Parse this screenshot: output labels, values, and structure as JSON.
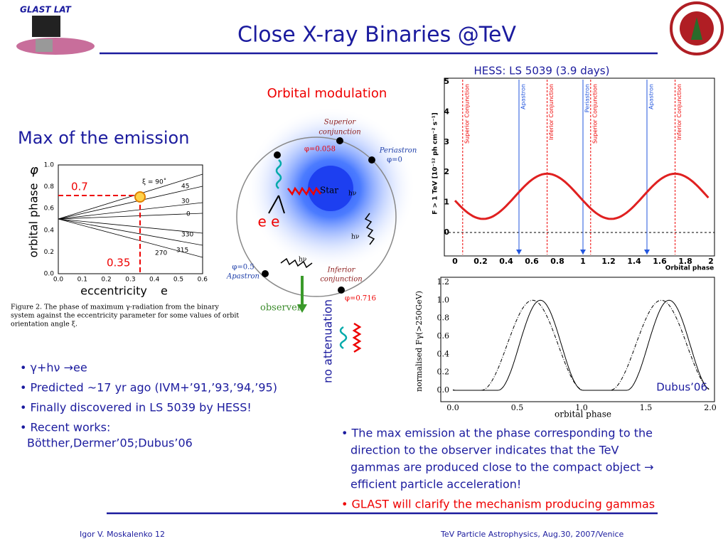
{
  "header": {
    "logo": "GLAST LAT",
    "title": "Close X-ray Binaries @TeV"
  },
  "left_figure": {
    "heading": "Max of the emission",
    "y_label": "orbital phase",
    "y_symbol": "φ",
    "x_label": "eccentricity",
    "x_symbol": "e",
    "yticks": [
      "1.0",
      "0.8",
      "0.6",
      "0.4",
      "0.2",
      "0.0"
    ],
    "xticks": [
      "0.0",
      "0.1",
      "0.2",
      "0.3",
      "0.4",
      "0.5",
      "0.6"
    ],
    "curve_labels": [
      "ξ = 90˚",
      "45",
      "30",
      "0",
      "330",
      "315",
      "270"
    ],
    "markers": [
      "0.7",
      "0.35"
    ],
    "caption_lines": [
      "Figure 2.  The phase of maximum γ-radiation from the binary",
      "system against the eccentricity parameter for some values of orbit",
      "orientation angle ξ."
    ]
  },
  "diagram": {
    "heading": "Orbital modulation",
    "labels": [
      "Superior",
      "conjunction",
      "φ=0.058",
      "Periastron",
      "φ=0",
      "Star",
      "hν",
      "hν",
      "hν",
      "φ=0.5",
      "Apastron",
      "Inferior",
      "conjunction",
      "φ=0.716",
      "observer",
      "e e",
      "no attenuation"
    ]
  },
  "hess": {
    "title": "HESS: LS 5039 (3.9 days)",
    "y_label": "F > 1 TeV [10⁻¹² ph cm⁻² s⁻¹]",
    "yticks": [
      "5",
      "4",
      "3",
      "2",
      "1",
      "0"
    ],
    "xticks": [
      "0",
      "0.2",
      "0.4",
      "0.6",
      "0.8",
      "1",
      "1.2",
      "1.4",
      "1.6",
      "1.8",
      "2"
    ],
    "x_label": "Orbital phase",
    "annotations": [
      "Superior Conjunction",
      "Apastron",
      "Inferior Conjunction",
      "Periastron",
      "Superior Conjunction",
      "Apastron",
      "Inferior Conjunction"
    ]
  },
  "dubus": {
    "y_label": "normalised Fγ(>250GeV)",
    "yticks": [
      "1.2",
      "1.0",
      "0.8",
      "0.6",
      "0.4",
      "0.2",
      "0.0"
    ],
    "xticks": [
      "0.0",
      "0.5",
      "1.0",
      "1.5",
      "2.0"
    ],
    "x_label": "orbital phase",
    "credit": "Dubus’06"
  },
  "bullets_left": [
    [
      "• γ+hν →ee"
    ],
    [
      "• Predicted ~17 yr ago (IVM+’91,’93,’94,’95)"
    ],
    [
      "• Finally discovered in LS 5039 by HESS!"
    ],
    [
      "• Recent works:",
      "Bötther,Dermer’05;Dubus’06"
    ]
  ],
  "bullets_right": [
    [
      "• The max emission at the phase corresponding to the",
      "direction to the observer indicates that the TeV",
      "gammas are produced close to the compact object →",
      "efficient particle acceleration!"
    ],
    [
      "• GLAST will clarify the mechanism producing gammas"
    ]
  ],
  "footer": {
    "left": "Igor V. Moskalenko  12",
    "right": "TeV Particle Astrophysics, Aug.30, 2007/Venice"
  }
}
